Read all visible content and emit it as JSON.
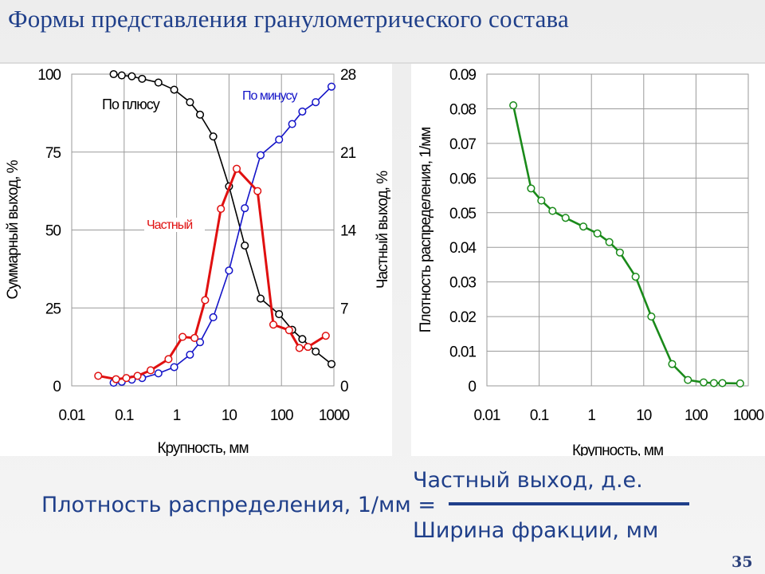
{
  "title": "Формы представления гранулометрического состава",
  "page_number": "35",
  "formula": {
    "lhs": "Плотность распределения, 1/мм =",
    "numerator": "Частный выход, д.е.",
    "denominator": "Ширина фракции, мм"
  },
  "chart_data": [
    {
      "type": "line",
      "xscale": "log",
      "xlim": [
        0.01,
        1000
      ],
      "x_ticks": [
        "0.01",
        "0.1",
        "1",
        "10",
        "100",
        "1000"
      ],
      "xlabel": "Крупность, мм",
      "ylabel": "Суммарный выход, %",
      "ylim": [
        0,
        100
      ],
      "y_ticks": [
        "0",
        "25",
        "50",
        "75",
        "100"
      ],
      "y2label": "Частный выход, %",
      "y2lim": [
        0,
        28
      ],
      "y2_ticks": [
        "0",
        "7",
        "14",
        "21",
        "28"
      ],
      "grid": true,
      "series": [
        {
          "name": "По плюсу",
          "color": "#000000",
          "axis": "left",
          "x": [
            0.063,
            0.09,
            0.14,
            0.22,
            0.45,
            0.9,
            1.8,
            2.8,
            5,
            10,
            20,
            40,
            90,
            160,
            250,
            450,
            900
          ],
          "y": [
            100,
            99.6,
            99.3,
            98.5,
            97.3,
            95,
            91,
            87,
            80,
            64,
            45,
            28,
            23,
            18,
            15,
            11,
            7
          ]
        },
        {
          "name": "По минусу",
          "color": "#1414c8",
          "axis": "left",
          "x": [
            0.063,
            0.09,
            0.14,
            0.22,
            0.45,
            0.9,
            1.8,
            2.8,
            5,
            10,
            20,
            40,
            90,
            160,
            250,
            450,
            900
          ],
          "y": [
            1,
            1.3,
            2,
            2.5,
            4,
            6,
            10,
            14,
            22,
            37,
            57,
            74,
            79,
            84,
            88,
            91,
            96
          ]
        },
        {
          "name": "Частный",
          "color": "#e01010",
          "axis": "right",
          "x": [
            0.032,
            0.07,
            0.11,
            0.18,
            0.32,
            0.7,
            1.3,
            2.2,
            3.5,
            7,
            14,
            35,
            70,
            140,
            220,
            320,
            700
          ],
          "y": [
            0.9,
            0.6,
            0.7,
            0.9,
            1.4,
            2.4,
            4.4,
            4.3,
            7.7,
            15.9,
            19.5,
            17.5,
            5.5,
            5,
            3.4,
            3.5,
            4.5
          ]
        }
      ]
    },
    {
      "type": "line",
      "xscale": "log",
      "xlim": [
        0.01,
        1000
      ],
      "x_ticks": [
        "0.01",
        "0.1",
        "1",
        "10",
        "100",
        "1000"
      ],
      "xlabel": "Крупность, мм",
      "ylabel": "Плотность распределения, 1/мм",
      "ylim": [
        0,
        0.09
      ],
      "y_ticks": [
        "0",
        "0.01",
        "0.02",
        "0.03",
        "0.04",
        "0.05",
        "0.06",
        "0.07",
        "0.08",
        "0.09"
      ],
      "grid": true,
      "series": [
        {
          "color": "#1a8a1a",
          "x": [
            0.032,
            0.07,
            0.11,
            0.18,
            0.32,
            0.7,
            1.3,
            2.2,
            3.5,
            7,
            14,
            35,
            70,
            140,
            220,
            320,
            700
          ],
          "y": [
            0.081,
            0.057,
            0.0535,
            0.0505,
            0.0485,
            0.046,
            0.044,
            0.0415,
            0.0385,
            0.0315,
            0.02,
            0.0063,
            0.0017,
            0.001,
            0.0008,
            0.0008,
            0.0007
          ]
        }
      ]
    }
  ]
}
